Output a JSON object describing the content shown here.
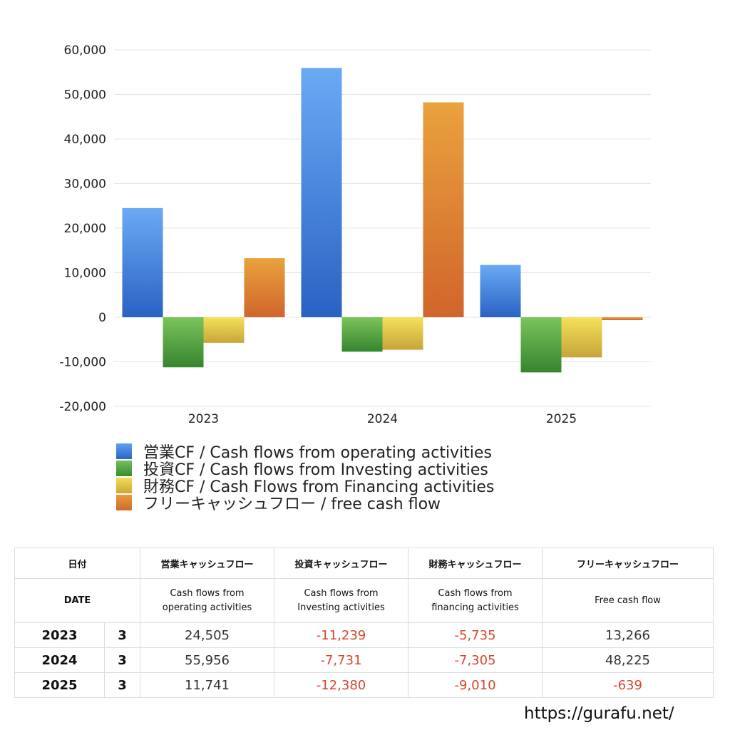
{
  "chart_data": {
    "type": "bar",
    "categories": [
      "2023",
      "2024",
      "2025"
    ],
    "series": [
      {
        "name": "営業CF / Cash flows from operating activities",
        "values": [
          24505,
          55956,
          11741
        ],
        "color": "#3b7ddd"
      },
      {
        "name": "投資CF / Cash flows from Investing activities",
        "values": [
          -11239,
          -7731,
          -12380
        ],
        "color": "#4a9e3c"
      },
      {
        "name": "財務CF / Cash Flows from Financing activities",
        "values": [
          -5735,
          -7305,
          -9010
        ],
        "color": "#e0c23a"
      },
      {
        "name": "フリーキャッシュフロー / free cash flow",
        "values": [
          13266,
          48225,
          -639
        ],
        "color": "#e07a2e"
      }
    ],
    "ylim": [
      -20000,
      60000
    ],
    "yticks": [
      "60,000",
      "50,000",
      "40,000",
      "30,000",
      "20,000",
      "10,000",
      "0",
      "-10,000",
      "-20,000"
    ],
    "grid": true,
    "legend_position": "bottom"
  },
  "table": {
    "header_jp": [
      "日付",
      "営業キャッシュフロー",
      "投資キャッシュフロー",
      "財務キャッシュフロー",
      "フリーキャッシュフロー"
    ],
    "header_en": [
      "DATE",
      "Cash flows from operating activities",
      "Cash flows from Investing activities",
      "Cash flows from financing activities",
      "Free cash flow"
    ],
    "header_en_lines": [
      [
        "DATE"
      ],
      [
        "Cash flows from",
        "operating activities"
      ],
      [
        "Cash flows from",
        "Investing activities"
      ],
      [
        "Cash flows from",
        "financing activities"
      ],
      [
        "Free cash flow"
      ]
    ],
    "rows": [
      {
        "year": "2023",
        "month": "3",
        "values": [
          "24,505",
          "-11,239",
          "-5,735",
          "13,266"
        ]
      },
      {
        "year": "2024",
        "month": "3",
        "values": [
          "55,956",
          "-7,731",
          "-7,305",
          "48,225"
        ]
      },
      {
        "year": "2025",
        "month": "3",
        "values": [
          "11,741",
          "-12,380",
          "-9,010",
          "-639"
        ]
      }
    ]
  },
  "footer": {
    "url": "https://gurafu.net/"
  }
}
